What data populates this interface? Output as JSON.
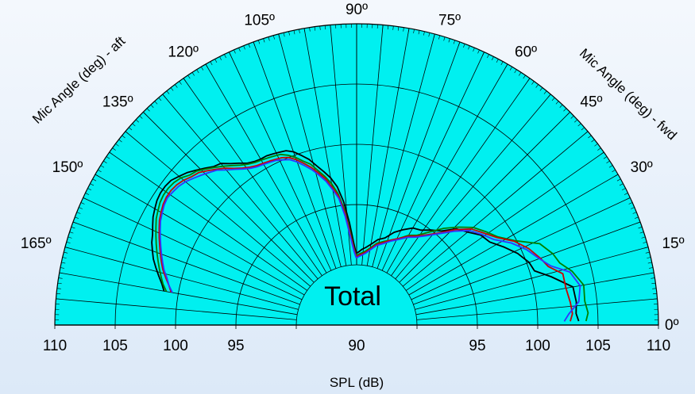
{
  "chart_data": {
    "type": "polar-semicircle-line",
    "center_label": "Total",
    "xlabel": "SPL (dB)",
    "left_axis_label": "Mic Angle (deg) - aft",
    "right_axis_label": "Mic Angle (deg) - fwd",
    "radial_range_db": [
      85,
      110
    ],
    "radial_ticks": [
      {
        "label": "110",
        "side": "left",
        "db": 110
      },
      {
        "label": "105",
        "side": "left",
        "db": 105
      },
      {
        "label": "100",
        "side": "left",
        "db": 100
      },
      {
        "label": "95",
        "side": "left",
        "db": 95
      },
      {
        "label": "90",
        "side": "center",
        "db": 90
      },
      {
        "label": "95",
        "side": "right",
        "db": 95
      },
      {
        "label": "100",
        "side": "right",
        "db": 100
      },
      {
        "label": "105",
        "side": "right",
        "db": 105
      },
      {
        "label": "110",
        "side": "right",
        "db": 110
      }
    ],
    "angle_ticks": [
      {
        "label": "0º",
        "angle": 0
      },
      {
        "label": "15º",
        "angle": 15
      },
      {
        "label": "30º",
        "angle": 30
      },
      {
        "label": "45º",
        "angle": 45
      },
      {
        "label": "60º",
        "angle": 60
      },
      {
        "label": "75º",
        "angle": 75
      },
      {
        "label": "90º",
        "angle": 90
      },
      {
        "label": "105º",
        "angle": 105
      },
      {
        "label": "120º",
        "angle": 120
      },
      {
        "label": "135º",
        "angle": 135
      },
      {
        "label": "150º",
        "angle": 150
      },
      {
        "label": "165º",
        "angle": 165
      }
    ],
    "angle_grid_step_deg": 5,
    "grid": true,
    "colors": {
      "plot_fill": "#00f0f0",
      "grid": "#000000",
      "background": "#e6eff9"
    },
    "series": [
      {
        "color": "#000000",
        "points": [
          [
            1,
            103.4
          ],
          [
            3,
            103.2
          ],
          [
            6,
            103.3
          ],
          [
            10,
            103.2
          ],
          [
            14,
            101.6
          ],
          [
            17,
            100.4
          ],
          [
            20,
            100.2
          ],
          [
            24,
            99.6
          ],
          [
            28,
            98.8
          ],
          [
            32,
            98.0
          ],
          [
            36,
            97.7
          ],
          [
            40,
            97.0
          ],
          [
            44,
            96.5
          ],
          [
            48,
            95.5
          ],
          [
            52,
            95.0
          ],
          [
            56,
            94.5
          ],
          [
            60,
            94.3
          ],
          [
            64,
            93.8
          ],
          [
            68,
            93.3
          ],
          [
            72,
            92.6
          ],
          [
            76,
            92.3
          ],
          [
            80,
            91.8
          ],
          [
            83,
            91.5
          ],
          [
            86,
            91.3
          ],
          [
            88,
            91.1
          ],
          [
            89.5,
            91.0
          ],
          [
            90.5,
            91.0
          ],
          [
            92,
            91.8
          ],
          [
            94,
            93.5
          ],
          [
            96,
            95.3
          ],
          [
            98,
            96.6
          ],
          [
            100,
            97.4
          ],
          [
            102,
            98.0
          ],
          [
            104,
            98.6
          ],
          [
            106,
            99.3
          ],
          [
            108,
            99.8
          ],
          [
            110,
            100.3
          ],
          [
            112,
            100.6
          ],
          [
            114,
            100.7
          ],
          [
            116,
            100.8
          ],
          [
            118,
            100.9
          ],
          [
            120,
            100.9
          ],
          [
            122,
            101.0
          ],
          [
            124,
            101.2
          ],
          [
            126,
            101.6
          ],
          [
            128,
            102.0
          ],
          [
            130,
            102.5
          ],
          [
            132,
            102.7
          ],
          [
            134,
            103.1
          ],
          [
            136,
            103.5
          ],
          [
            138,
            103.9
          ],
          [
            140,
            104.2
          ],
          [
            142,
            104.5
          ],
          [
            144,
            104.6
          ],
          [
            146,
            104.6
          ],
          [
            148,
            104.5
          ],
          [
            150,
            104.3
          ],
          [
            152,
            104.1
          ],
          [
            154,
            103.8
          ],
          [
            156,
            103.5
          ],
          [
            158,
            103.3
          ],
          [
            160,
            103.0
          ],
          [
            162,
            102.7
          ],
          [
            164,
            102.3
          ],
          [
            166,
            101.9
          ],
          [
            168,
            101.5
          ],
          [
            170,
            101.2
          ]
        ]
      },
      {
        "color": "#008000",
        "points": [
          [
            1,
            104.0
          ],
          [
            3,
            104.2
          ],
          [
            6,
            104.0
          ],
          [
            10,
            104.1
          ],
          [
            14,
            103.4
          ],
          [
            17,
            102.6
          ],
          [
            20,
            102.3
          ],
          [
            24,
            101.6
          ],
          [
            28,
            99.9
          ],
          [
            32,
            98.8
          ],
          [
            36,
            98.2
          ],
          [
            40,
            97.6
          ],
          [
            44,
            96.7
          ],
          [
            48,
            95.8
          ],
          [
            52,
            94.8
          ],
          [
            56,
            94.0
          ],
          [
            60,
            93.6
          ],
          [
            64,
            93.0
          ],
          [
            68,
            92.6
          ],
          [
            72,
            92.3
          ],
          [
            76,
            92.0
          ],
          [
            80,
            91.5
          ],
          [
            83,
            91.2
          ],
          [
            86,
            91.0
          ],
          [
            88,
            90.9
          ],
          [
            89.5,
            90.8
          ],
          [
            90.5,
            90.8
          ],
          [
            92,
            91.4
          ],
          [
            94,
            92.8
          ],
          [
            96,
            94.6
          ],
          [
            98,
            96.0
          ],
          [
            100,
            96.9
          ],
          [
            102,
            97.6
          ],
          [
            104,
            98.2
          ],
          [
            106,
            98.9
          ],
          [
            108,
            99.3
          ],
          [
            110,
            99.8
          ],
          [
            112,
            100.2
          ],
          [
            114,
            100.5
          ],
          [
            116,
            100.6
          ],
          [
            118,
            100.7
          ],
          [
            120,
            100.8
          ],
          [
            122,
            100.9
          ],
          [
            124,
            101.1
          ],
          [
            126,
            101.4
          ],
          [
            128,
            101.8
          ],
          [
            130,
            102.2
          ],
          [
            132,
            102.6
          ],
          [
            134,
            103.0
          ],
          [
            136,
            103.4
          ],
          [
            138,
            103.6
          ],
          [
            140,
            104.0
          ],
          [
            142,
            104.2
          ],
          [
            144,
            104.3
          ],
          [
            146,
            104.3
          ],
          [
            148,
            104.2
          ],
          [
            150,
            104.0
          ],
          [
            152,
            103.8
          ],
          [
            154,
            103.5
          ],
          [
            156,
            103.2
          ],
          [
            158,
            102.9
          ],
          [
            160,
            102.6
          ],
          [
            162,
            102.3
          ],
          [
            164,
            102.0
          ],
          [
            166,
            101.7
          ],
          [
            168,
            101.4
          ],
          [
            170,
            101.0
          ]
        ]
      },
      {
        "color": "#cc0000",
        "points": [
          [
            1,
            102.7
          ],
          [
            3,
            102.9
          ],
          [
            6,
            102.8
          ],
          [
            10,
            102.6
          ],
          [
            14,
            102.6
          ],
          [
            17,
            101.6
          ],
          [
            20,
            101.2
          ],
          [
            24,
            100.6
          ],
          [
            28,
            99.8
          ],
          [
            32,
            98.7
          ],
          [
            36,
            98.0
          ],
          [
            40,
            97.4
          ],
          [
            44,
            96.4
          ],
          [
            48,
            95.3
          ],
          [
            52,
            94.5
          ],
          [
            56,
            93.9
          ],
          [
            60,
            93.5
          ],
          [
            64,
            93.0
          ],
          [
            68,
            92.6
          ],
          [
            72,
            92.2
          ],
          [
            76,
            91.9
          ],
          [
            80,
            91.4
          ],
          [
            83,
            91.1
          ],
          [
            86,
            90.9
          ],
          [
            88,
            90.8
          ],
          [
            89.5,
            90.7
          ],
          [
            90.5,
            90.7
          ],
          [
            92,
            91.3
          ],
          [
            94,
            92.6
          ],
          [
            96,
            94.4
          ],
          [
            98,
            95.8
          ],
          [
            100,
            96.6
          ],
          [
            102,
            97.4
          ],
          [
            104,
            98.0
          ],
          [
            106,
            98.6
          ],
          [
            108,
            99.1
          ],
          [
            110,
            99.6
          ],
          [
            112,
            100.0
          ],
          [
            114,
            100.2
          ],
          [
            116,
            100.3
          ],
          [
            118,
            100.4
          ],
          [
            120,
            100.5
          ],
          [
            122,
            100.6
          ],
          [
            124,
            100.8
          ],
          [
            126,
            101.1
          ],
          [
            128,
            101.5
          ],
          [
            130,
            102.0
          ],
          [
            132,
            102.4
          ],
          [
            134,
            102.8
          ],
          [
            136,
            103.2
          ],
          [
            138,
            103.4
          ],
          [
            140,
            103.7
          ],
          [
            142,
            103.9
          ],
          [
            144,
            104.0
          ],
          [
            146,
            104.0
          ],
          [
            148,
            103.9
          ],
          [
            150,
            103.7
          ],
          [
            152,
            103.5
          ],
          [
            154,
            103.2
          ],
          [
            156,
            102.9
          ],
          [
            158,
            102.6
          ],
          [
            160,
            102.3
          ],
          [
            162,
            102.0
          ],
          [
            164,
            101.7
          ],
          [
            166,
            101.3
          ],
          [
            168,
            100.9
          ],
          [
            170,
            100.6
          ]
        ]
      },
      {
        "color": "#3333ff",
        "points": [
          [
            1,
            102.2
          ],
          [
            3,
            102.6
          ],
          [
            6,
            103.5
          ],
          [
            10,
            103.8
          ],
          [
            14,
            103.2
          ],
          [
            17,
            101.8
          ],
          [
            20,
            101.1
          ],
          [
            24,
            100.4
          ],
          [
            28,
            99.5
          ],
          [
            32,
            98.4
          ],
          [
            36,
            97.8
          ],
          [
            40,
            97.2
          ],
          [
            44,
            96.2
          ],
          [
            48,
            95.2
          ],
          [
            52,
            94.4
          ],
          [
            56,
            93.8
          ],
          [
            60,
            93.4
          ],
          [
            64,
            92.9
          ],
          [
            68,
            92.5
          ],
          [
            72,
            92.1
          ],
          [
            76,
            91.8
          ],
          [
            80,
            91.3
          ],
          [
            83,
            91.0
          ],
          [
            86,
            90.8
          ],
          [
            88,
            90.7
          ],
          [
            89.5,
            90.6
          ],
          [
            90.5,
            90.6
          ],
          [
            92,
            91.1
          ],
          [
            94,
            92.3
          ],
          [
            96,
            94.1
          ],
          [
            98,
            95.6
          ],
          [
            100,
            96.4
          ],
          [
            102,
            97.2
          ],
          [
            104,
            97.8
          ],
          [
            106,
            98.4
          ],
          [
            108,
            98.9
          ],
          [
            110,
            99.4
          ],
          [
            112,
            99.8
          ],
          [
            114,
            100.0
          ],
          [
            116,
            100.2
          ],
          [
            118,
            100.3
          ],
          [
            120,
            100.4
          ],
          [
            122,
            100.5
          ],
          [
            124,
            100.7
          ],
          [
            126,
            101.0
          ],
          [
            128,
            101.4
          ],
          [
            130,
            101.8
          ],
          [
            132,
            102.3
          ],
          [
            134,
            102.6
          ],
          [
            136,
            102.9
          ],
          [
            138,
            103.2
          ],
          [
            140,
            103.5
          ],
          [
            142,
            103.7
          ],
          [
            144,
            103.8
          ],
          [
            146,
            103.9
          ],
          [
            148,
            103.8
          ],
          [
            150,
            103.6
          ],
          [
            152,
            103.4
          ],
          [
            154,
            103.1
          ],
          [
            156,
            102.8
          ],
          [
            158,
            102.5
          ],
          [
            160,
            102.2
          ],
          [
            162,
            101.9
          ],
          [
            164,
            101.6
          ],
          [
            166,
            101.2
          ],
          [
            168,
            100.9
          ],
          [
            170,
            100.5
          ]
        ]
      }
    ]
  }
}
